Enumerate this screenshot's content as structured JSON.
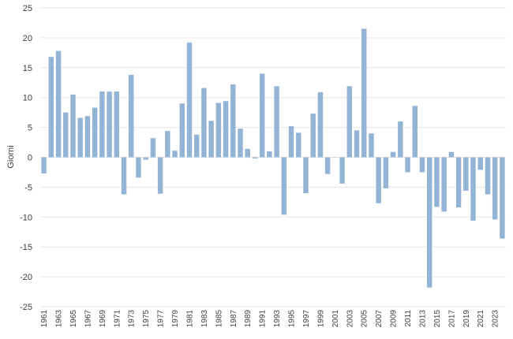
{
  "chart_data": {
    "type": "bar",
    "title": "",
    "xlabel": "",
    "ylabel": "Giorni",
    "ylim": [
      -25,
      25
    ],
    "yticks": [
      25,
      20,
      15,
      10,
      5,
      0,
      -5,
      -10,
      -15,
      -20,
      -25
    ],
    "grid": true,
    "bar_color": "#94b4d6",
    "grid_color": "#e6e6e6",
    "categories": [
      "1961",
      "1962",
      "1963",
      "1964",
      "1965",
      "1966",
      "1967",
      "1968",
      "1969",
      "1970",
      "1971",
      "1972",
      "1973",
      "1974",
      "1975",
      "1976",
      "1977",
      "1978",
      "1979",
      "1980",
      "1981",
      "1982",
      "1983",
      "1984",
      "1985",
      "1986",
      "1987",
      "1988",
      "1989",
      "1990",
      "1991",
      "1992",
      "1993",
      "1994",
      "1995",
      "1996",
      "1997",
      "1998",
      "1999",
      "2000",
      "2001",
      "2002",
      "2003",
      "2004",
      "2005",
      "2006",
      "2007",
      "2008",
      "2009",
      "2010",
      "2011",
      "2012",
      "2013",
      "2014",
      "2015",
      "2016",
      "2017",
      "2018",
      "2019",
      "2020",
      "2021",
      "2022",
      "2023",
      "2024"
    ],
    "x_tick_labels": [
      "1961",
      "1963",
      "1965",
      "1967",
      "1969",
      "1971",
      "1973",
      "1975",
      "1977",
      "1979",
      "1981",
      "1983",
      "1985",
      "1987",
      "1989",
      "1991",
      "1993",
      "1995",
      "1997",
      "1999",
      "2001",
      "2003",
      "2005",
      "2007",
      "2009",
      "2011",
      "2013",
      "2015",
      "2017",
      "2019",
      "2021",
      "2023"
    ],
    "values": [
      -2.7,
      16.8,
      17.8,
      7.5,
      10.5,
      6.6,
      6.9,
      8.3,
      11.0,
      11.0,
      11.0,
      -6.2,
      13.8,
      -3.4,
      -0.4,
      3.2,
      -6.1,
      4.4,
      1.1,
      9.0,
      19.2,
      3.8,
      11.6,
      6.1,
      9.1,
      9.4,
      12.2,
      4.8,
      1.4,
      -0.2,
      14.0,
      1.0,
      11.9,
      -9.6,
      5.2,
      4.1,
      -6.0,
      7.3,
      10.9,
      -2.8,
      0.0,
      -4.4,
      11.9,
      4.5,
      21.5,
      4.0,
      -7.7,
      -5.2,
      0.9,
      6.0,
      -2.5,
      8.6,
      -2.5,
      -21.8,
      -8.3,
      -9.1,
      0.9,
      -8.4,
      -5.6,
      -10.6,
      -2.1,
      -6.2,
      -10.4,
      -13.6
    ]
  }
}
